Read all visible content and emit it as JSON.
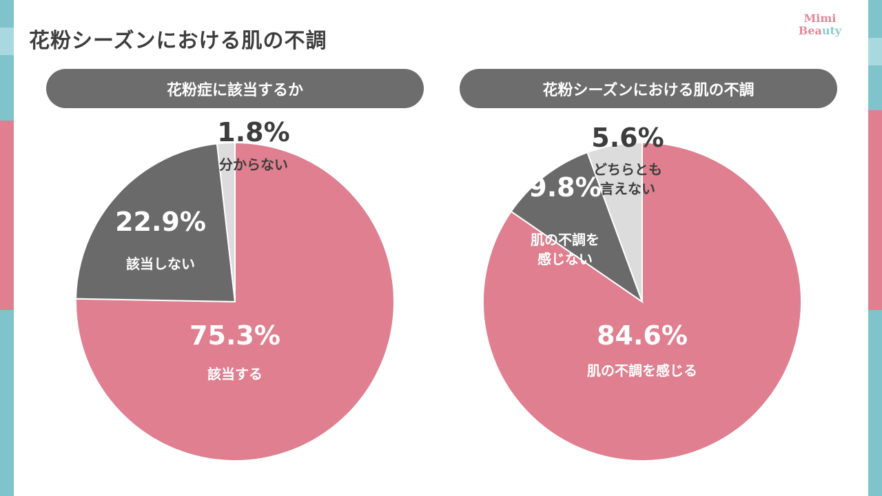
{
  "title": "花粉シーズンにおける肌の不調",
  "logo": {
    "line1": "Mimi",
    "line2": "Beauty"
  },
  "colors": {
    "pink": "#df7f8f",
    "dark": "#6b6a6b",
    "light": "#dcdcdc",
    "title": "#3d3d3d"
  },
  "chart_data": [
    {
      "type": "pie",
      "title": "花粉症に該当するか",
      "start": "top",
      "direction": "clockwise",
      "slices": [
        {
          "label": "該当する",
          "pct_label": "75.3%",
          "value": 75.3,
          "color": "#df7f8f",
          "text_color": "#ffffff"
        },
        {
          "label": "該当しない",
          "pct_label": "22.9%",
          "value": 22.9,
          "color": "#6b6a6b",
          "text_color": "#ffffff"
        },
        {
          "label": "分からない",
          "pct_label": "1.8%",
          "value": 1.8,
          "color": "#dcdcdc",
          "text_color": "#3d3d3d"
        }
      ]
    },
    {
      "type": "pie",
      "title": "花粉シーズンにおける肌の不調",
      "start": "top",
      "direction": "clockwise",
      "slices": [
        {
          "label": "肌の不調を感じる",
          "pct_label": "84.6%",
          "value": 84.6,
          "color": "#df7f8f",
          "text_color": "#ffffff"
        },
        {
          "label": "肌の不調を\n感じない",
          "pct_label": "9.8%",
          "value": 9.8,
          "color": "#6b6a6b",
          "text_color": "#ffffff"
        },
        {
          "label": "どちらとも\n言えない",
          "pct_label": "5.6%",
          "value": 5.6,
          "color": "#dcdcdc",
          "text_color": "#3d3d3d"
        }
      ]
    }
  ]
}
